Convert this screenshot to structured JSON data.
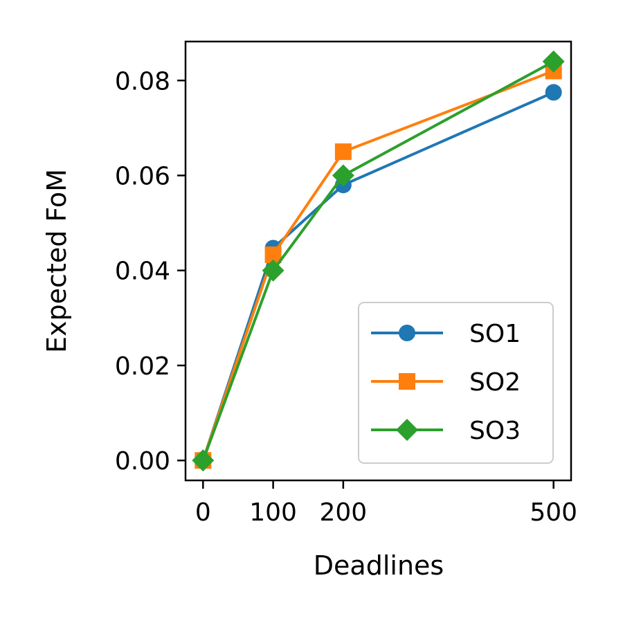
{
  "chart_data": {
    "type": "line",
    "title": "",
    "xlabel": "Deadlines",
    "ylabel": "Expected FoM",
    "x": [
      0,
      100,
      200,
      500
    ],
    "xticks": [
      0,
      100,
      200,
      500
    ],
    "xtick_labels": [
      "0",
      "100",
      "200",
      "500"
    ],
    "xlim": [
      -25,
      525
    ],
    "yticks": [
      0.0,
      0.02,
      0.04,
      0.06,
      0.08
    ],
    "ytick_labels": [
      "0.00",
      "0.02",
      "0.04",
      "0.06",
      "0.08"
    ],
    "ylim": [
      -0.0042,
      0.0882
    ],
    "grid": false,
    "legend_position": "lower-right",
    "series": [
      {
        "name": "SO1",
        "marker": "circle",
        "color": "#1f77b4",
        "values": [
          0.0,
          0.0447,
          0.058,
          0.0775
        ]
      },
      {
        "name": "SO2",
        "marker": "square",
        "color": "#ff7f0e",
        "values": [
          0.0,
          0.0433,
          0.065,
          0.082
        ]
      },
      {
        "name": "SO3",
        "marker": "diamond",
        "color": "#2ca02c",
        "values": [
          0.0,
          0.04,
          0.06,
          0.084
        ]
      }
    ]
  }
}
